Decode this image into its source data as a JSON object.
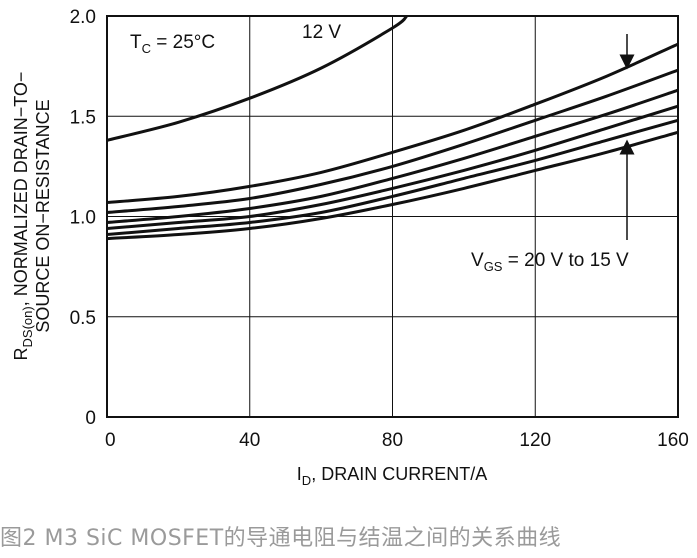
{
  "caption": "图2 M3 SiC MOSFET的导通电阻与结温之间的关系曲线",
  "chart_data": {
    "type": "line",
    "xlabel_main": "I",
    "xlabel_sub": "D",
    "xlabel_rest": ", DRAIN CURRENT/A",
    "ylabel_line1_main": "R",
    "ylabel_line1_sub": "DS(on)",
    "ylabel_line1_rest": ", NORMALIZED DRAIN−TO−",
    "ylabel_line2": "SOURCE ON−RESISTANCE",
    "xlim": [
      0,
      160
    ],
    "ylim": [
      0,
      2.0
    ],
    "x_ticks": [
      "0",
      "40",
      "80",
      "120",
      "160"
    ],
    "y_ticks": [
      "0",
      "0.5",
      "1.0",
      "1.5",
      "2.0"
    ],
    "grid": true,
    "annotations": {
      "tc_main": "T",
      "tc_sub": "C",
      "tc_rest": " = 25°C",
      "series_12v": "12 V",
      "vgs_main": "V",
      "vgs_sub": "GS",
      "vgs_rest": " = 20 V to 15 V"
    },
    "series": [
      {
        "name": "12 V",
        "x": [
          0,
          20,
          40,
          60,
          80,
          84
        ],
        "y": [
          1.38,
          1.47,
          1.59,
          1.74,
          1.94,
          2.0
        ]
      },
      {
        "x": [
          0,
          20,
          40,
          60,
          80,
          100,
          120,
          140,
          160
        ],
        "y": [
          1.07,
          1.1,
          1.15,
          1.22,
          1.32,
          1.43,
          1.56,
          1.7,
          1.86
        ]
      },
      {
        "x": [
          0,
          20,
          40,
          60,
          80,
          100,
          120,
          140,
          160
        ],
        "y": [
          1.02,
          1.05,
          1.09,
          1.16,
          1.25,
          1.36,
          1.48,
          1.6,
          1.73
        ]
      },
      {
        "x": [
          0,
          20,
          40,
          60,
          80,
          100,
          120,
          140,
          160
        ],
        "y": [
          0.97,
          1.0,
          1.04,
          1.1,
          1.19,
          1.29,
          1.4,
          1.51,
          1.63
        ]
      },
      {
        "x": [
          0,
          20,
          40,
          60,
          80,
          100,
          120,
          140,
          160
        ],
        "y": [
          0.94,
          0.97,
          1.0,
          1.06,
          1.14,
          1.23,
          1.33,
          1.44,
          1.55
        ]
      },
      {
        "x": [
          0,
          20,
          40,
          60,
          80,
          100,
          120,
          140,
          160
        ],
        "y": [
          0.91,
          0.94,
          0.97,
          1.02,
          1.1,
          1.19,
          1.28,
          1.38,
          1.48
        ]
      },
      {
        "x": [
          0,
          20,
          40,
          60,
          80,
          100,
          120,
          140,
          160
        ],
        "y": [
          0.89,
          0.91,
          0.94,
          0.99,
          1.06,
          1.14,
          1.23,
          1.32,
          1.42
        ]
      }
    ]
  }
}
